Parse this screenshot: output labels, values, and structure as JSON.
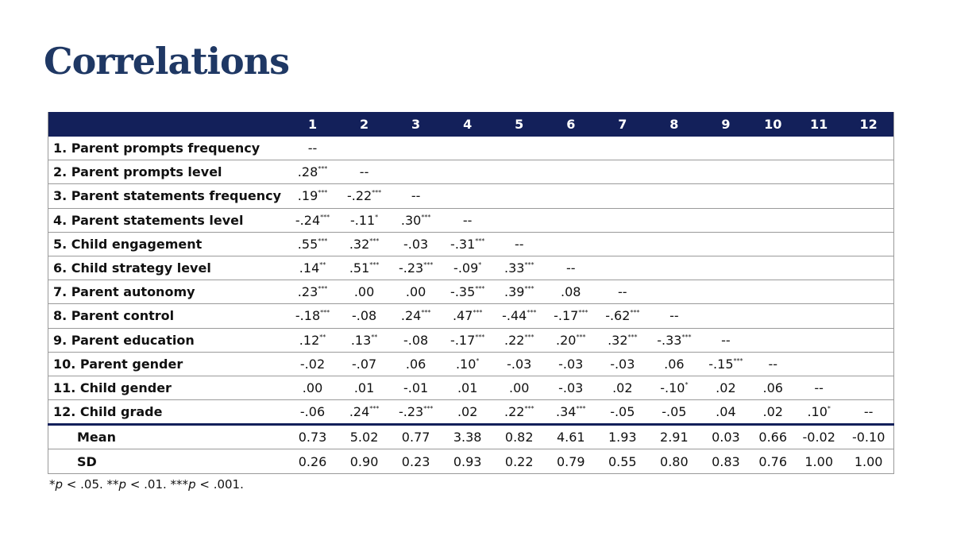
{
  "title": "Correlations",
  "table": {
    "columns": [
      "1",
      "2",
      "3",
      "4",
      "5",
      "6",
      "7",
      "8",
      "9",
      "10",
      "11",
      "12"
    ],
    "rows": [
      {
        "label": "1. Parent prompts frequency",
        "cells": [
          "--"
        ]
      },
      {
        "label": "2. Parent prompts level",
        "cells": [
          {
            "text": ".28",
            "sup": "***"
          },
          "--"
        ]
      },
      {
        "label": "3. Parent statements frequency",
        "cells": [
          {
            "text": ".19",
            "sup": "***"
          },
          {
            "text": "-.22",
            "sup": "***"
          },
          "--"
        ]
      },
      {
        "label": "4. Parent statements level",
        "cells": [
          {
            "text": "-.24",
            "sup": "***"
          },
          {
            "text": "-.11",
            "sup": "*"
          },
          {
            "text": ".30",
            "sup": "***"
          },
          "--"
        ]
      },
      {
        "label": "5. Child engagement",
        "cells": [
          {
            "text": ".55",
            "sup": "***"
          },
          {
            "text": ".32",
            "sup": "***"
          },
          "-.03",
          {
            "text": "-.31",
            "sup": "***"
          },
          "--"
        ]
      },
      {
        "label": "6. Child strategy level",
        "cells": [
          {
            "text": ".14",
            "sup": "**"
          },
          {
            "text": ".51",
            "sup": "***"
          },
          {
            "text": "-.23",
            "sup": "***"
          },
          {
            "text": "-.09",
            "sup": "*"
          },
          {
            "text": ".33",
            "sup": "***"
          },
          "--"
        ]
      },
      {
        "label": "7. Parent autonomy",
        "cells": [
          {
            "text": ".23",
            "sup": "***"
          },
          ".00",
          ".00",
          {
            "text": "-.35",
            "sup": "***"
          },
          {
            "text": ".39",
            "sup": "***"
          },
          ".08",
          "--"
        ]
      },
      {
        "label": "8. Parent control",
        "cells": [
          {
            "text": "-.18",
            "sup": "***"
          },
          "-.08",
          {
            "text": ".24",
            "sup": "***"
          },
          {
            "text": ".47",
            "sup": "***"
          },
          {
            "text": "-.44",
            "sup": "***"
          },
          {
            "text": "-.17",
            "sup": "***"
          },
          {
            "text": "-.62",
            "sup": "***"
          },
          "--"
        ]
      },
      {
        "label": "9. Parent education",
        "cells": [
          {
            "text": ".12",
            "sup": "**"
          },
          {
            "text": ".13",
            "sup": "**"
          },
          "-.08",
          {
            "text": "-.17",
            "sup": "***"
          },
          {
            "text": ".22",
            "sup": "***"
          },
          {
            "text": ".20",
            "sup": "***"
          },
          {
            "text": ".32",
            "sup": "***"
          },
          {
            "text": "-.33",
            "sup": "***"
          },
          "--"
        ]
      },
      {
        "label": "10. Parent gender",
        "cells": [
          "-.02",
          "-.07",
          ".06",
          {
            "text": ".10",
            "sup": "*"
          },
          "-.03",
          "-.03",
          "-.03",
          ".06",
          {
            "text": "-.15",
            "sup": "***"
          },
          "--"
        ]
      },
      {
        "label": "11. Child gender",
        "cells": [
          ".00",
          ".01",
          "-.01",
          ".01",
          ".00",
          "-.03",
          ".02",
          {
            "text": "-.10",
            "sup": "*"
          },
          ".02",
          ".06",
          "--"
        ]
      },
      {
        "label": "12. Child grade",
        "cells": [
          "-.06",
          {
            "text": ".24",
            "sup": "***"
          },
          {
            "text": "-.23",
            "sup": "***"
          },
          ".02",
          {
            "text": ".22",
            "sup": "***"
          },
          {
            "text": ".34",
            "sup": "***"
          },
          "-.05",
          "-.05",
          ".04",
          ".02",
          {
            "text": ".10",
            "sup": "*"
          },
          "--"
        ]
      }
    ],
    "summary": [
      {
        "label": "Mean",
        "cells": [
          "0.73",
          "5.02",
          "0.77",
          "3.38",
          "0.82",
          "4.61",
          "1.93",
          "2.91",
          "0.03",
          "0.66",
          "-0.02",
          "-0.10"
        ]
      },
      {
        "label": "SD",
        "cells": [
          "0.26",
          "0.90",
          "0.23",
          "0.93",
          "0.22",
          "0.79",
          "0.55",
          "0.80",
          "0.83",
          "0.76",
          "1.00",
          "1.00"
        ]
      }
    ],
    "footnote": [
      "*",
      "p",
      " < .05. **",
      "p",
      " < .01. ***",
      "p",
      " < .001."
    ]
  }
}
